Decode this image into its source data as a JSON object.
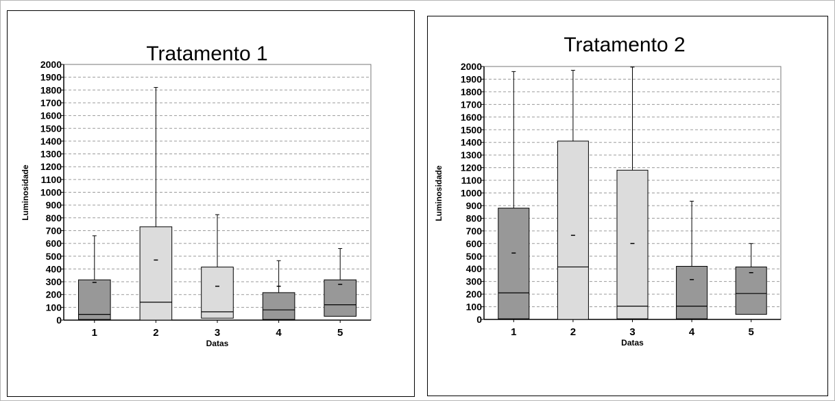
{
  "chart_data": [
    {
      "type": "box",
      "title": "Tratamento  1",
      "xlabel": "Datas",
      "ylabel": "Luminosidade",
      "ylim": [
        0,
        2000
      ],
      "yticks": [
        "0",
        "100",
        "200",
        "300",
        "400",
        "500",
        "600",
        "700",
        "800",
        "900",
        "1000",
        "1100",
        "1200",
        "1300",
        "1400",
        "1500",
        "1600",
        "1700",
        "1800",
        "1900",
        "2000"
      ],
      "grid": true,
      "categories": [
        "1",
        "2",
        "3",
        "4",
        "5"
      ],
      "boxes": [
        {
          "category": "1",
          "min": 5,
          "q1": 5,
          "median": 45,
          "q3": 315,
          "max": 660,
          "mean": 295,
          "shade": "dark"
        },
        {
          "category": "2",
          "min": 0,
          "q1": 0,
          "median": 140,
          "q3": 730,
          "max": 1820,
          "mean": 470,
          "shade": "light"
        },
        {
          "category": "3",
          "min": 15,
          "q1": 15,
          "median": 65,
          "q3": 415,
          "max": 825,
          "mean": 265,
          "shade": "light"
        },
        {
          "category": "4",
          "min": 5,
          "q1": 5,
          "median": 80,
          "q3": 215,
          "max": 465,
          "mean": 265,
          "shade": "dark"
        },
        {
          "category": "5",
          "min": 30,
          "q1": 30,
          "median": 120,
          "q3": 315,
          "max": 560,
          "mean": 280,
          "shade": "dark"
        }
      ]
    },
    {
      "type": "box",
      "title": "Tratamento 2",
      "xlabel": "Datas",
      "ylabel": "Luminosidade",
      "ylim": [
        0,
        2000
      ],
      "yticks": [
        "0",
        "100",
        "200",
        "300",
        "400",
        "500",
        "600",
        "700",
        "800",
        "900",
        "1000",
        "1100",
        "1200",
        "1300",
        "1400",
        "1500",
        "1600",
        "1700",
        "1800",
        "1900",
        "2000"
      ],
      "grid": true,
      "categories": [
        "1",
        "2",
        "3",
        "4",
        "5"
      ],
      "boxes": [
        {
          "category": "1",
          "min": 5,
          "q1": 5,
          "median": 210,
          "q3": 880,
          "max": 1960,
          "mean": 525,
          "shade": "dark"
        },
        {
          "category": "2",
          "min": 0,
          "q1": 0,
          "median": 415,
          "q3": 1410,
          "max": 1970,
          "mean": 665,
          "shade": "light"
        },
        {
          "category": "3",
          "min": 5,
          "q1": 5,
          "median": 105,
          "q3": 1180,
          "max": 1995,
          "mean": 600,
          "shade": "light"
        },
        {
          "category": "4",
          "min": 5,
          "q1": 5,
          "median": 105,
          "q3": 420,
          "max": 935,
          "mean": 315,
          "shade": "dark"
        },
        {
          "category": "5",
          "min": 40,
          "q1": 40,
          "median": 205,
          "q3": 415,
          "max": 600,
          "mean": 370,
          "shade": "dark"
        }
      ]
    }
  ],
  "colors": {
    "dark_box": "#989898",
    "light_box": "#dcdcdc",
    "grid": "#9a9a9a",
    "axis": "#000000"
  }
}
